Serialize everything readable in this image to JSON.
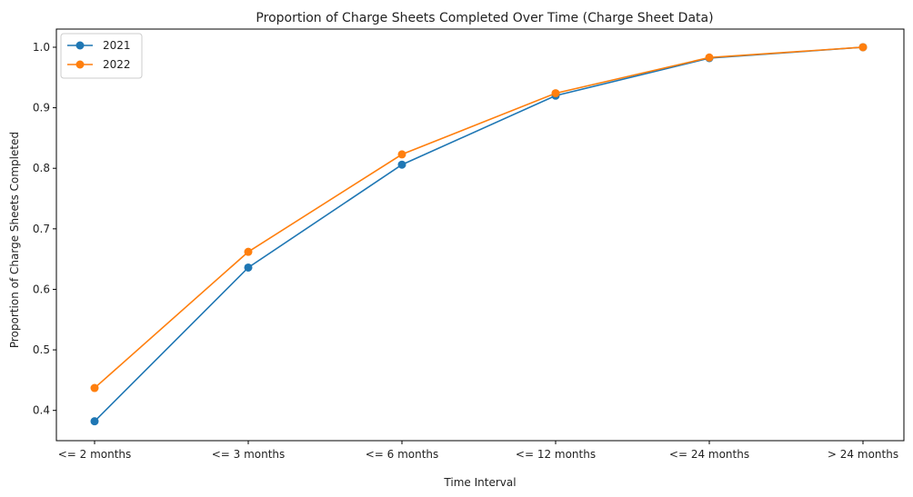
{
  "chart_data": {
    "type": "line",
    "title": "Proportion of Charge Sheets Completed Over Time (Charge Sheet Data)",
    "xlabel": "Time Interval",
    "ylabel": "Proportion of Charge Sheets Completed",
    "categories": [
      "<= 2 months",
      "<= 3 months",
      "<= 6 months",
      "<= 12 months",
      "<= 24 months",
      "> 24 months"
    ],
    "ylim": [
      0.35,
      1.03
    ],
    "yticks": [
      0.4,
      0.5,
      0.6,
      0.7,
      0.8,
      0.9,
      1.0
    ],
    "ytick_labels": [
      "0.4",
      "0.5",
      "0.6",
      "0.7",
      "0.8",
      "0.9",
      "1.0"
    ],
    "grid": false,
    "legend": "top-left",
    "series": [
      {
        "name": "2021",
        "color": "#1f77b4",
        "values": [
          0.382,
          0.636,
          0.806,
          0.92,
          0.982,
          1.0
        ]
      },
      {
        "name": "2022",
        "color": "#ff7f0e",
        "values": [
          0.437,
          0.662,
          0.823,
          0.924,
          0.983,
          1.0
        ]
      }
    ]
  }
}
